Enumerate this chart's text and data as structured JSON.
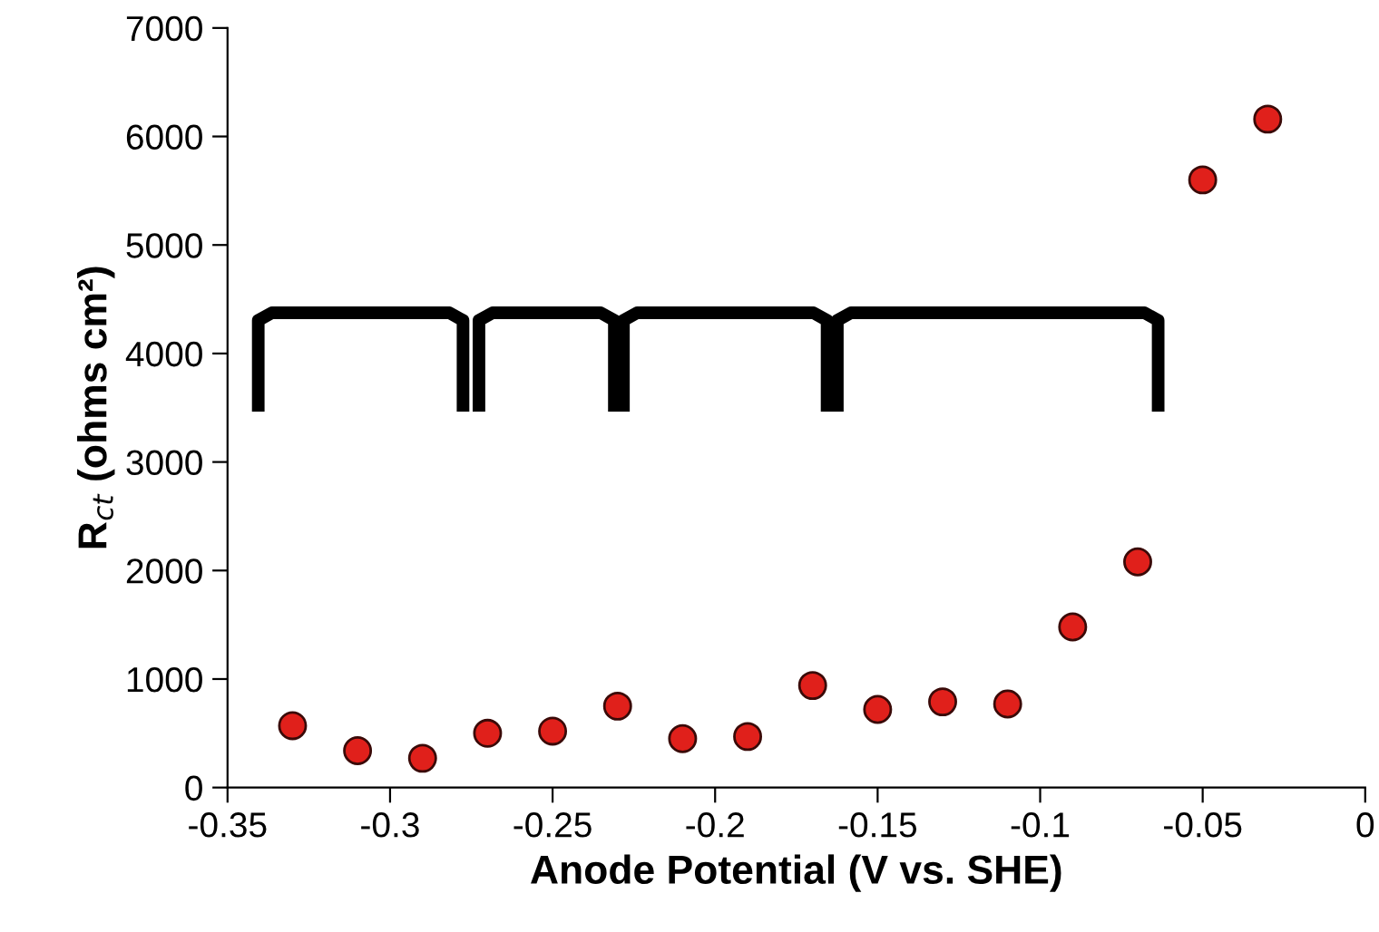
{
  "chart_data": {
    "type": "scatter",
    "xlabel": "Anode Potential (V vs. SHE)",
    "ylabel": "R$_{ct}$ (ohms cm²)",
    "x": [
      -0.33,
      -0.31,
      -0.29,
      -0.27,
      -0.25,
      -0.23,
      -0.21,
      -0.19,
      -0.17,
      -0.15,
      -0.13,
      -0.11,
      -0.09,
      -0.07,
      -0.05,
      -0.03
    ],
    "series": [
      {
        "color": "#e0201b",
        "values": [
          570,
          340,
          270,
          500,
          520,
          750,
          450,
          470,
          940,
          720,
          790,
          770,
          1480,
          2080,
          5600,
          6160
        ]
      }
    ],
    "xlim": [
      -0.35,
      0
    ],
    "xticks": [
      -0.35,
      -0.3,
      -0.25,
      -0.2,
      -0.15,
      -0.1,
      -0.05,
      0
    ],
    "ylim": [
      0,
      7000
    ],
    "yticks": [
      0,
      1000,
      2000,
      3000,
      4000,
      5000,
      6000,
      7000
    ],
    "marker": "circle",
    "grid": false,
    "legend": false
  }
}
